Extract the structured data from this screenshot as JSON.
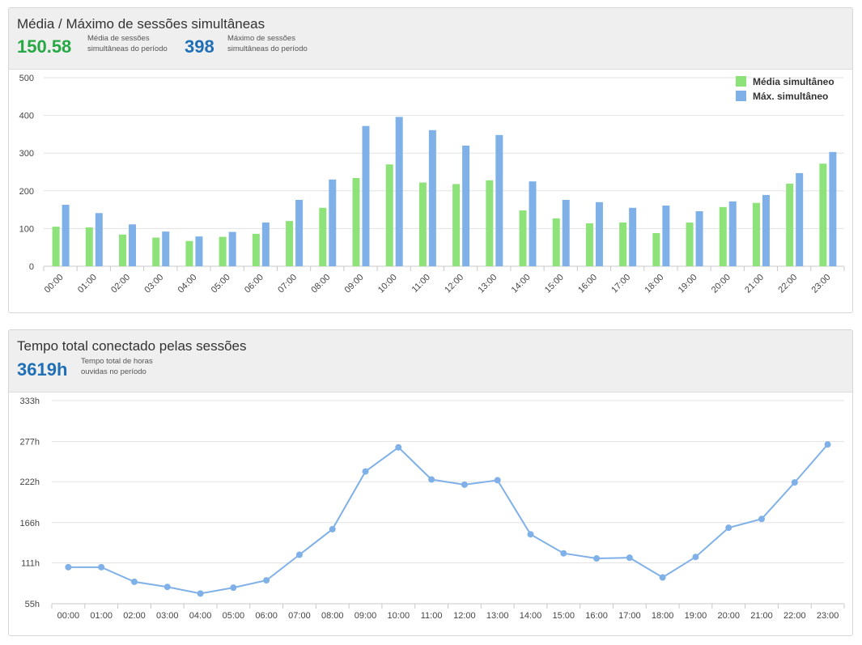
{
  "panel1": {
    "title": "Média / Máximo de sessões simultâneas",
    "stat_avg_value": "150.58",
    "stat_avg_label": "Média de sessões simultâneas do período",
    "stat_max_value": "398",
    "stat_max_label": "Máximo de sessões simultâneas do período"
  },
  "panel2": {
    "title": "Tempo total conectado pelas sessões",
    "stat_total_value": "3619h",
    "stat_total_label": "Tempo total de horas ouvidas no período"
  },
  "chart_data": [
    {
      "type": "bar",
      "categories": [
        "00:00",
        "01:00",
        "02:00",
        "03:00",
        "04:00",
        "05:00",
        "06:00",
        "07:00",
        "08:00",
        "09:00",
        "10:00",
        "11:00",
        "12:00",
        "13:00",
        "14:00",
        "15:00",
        "16:00",
        "17:00",
        "18:00",
        "19:00",
        "20:00",
        "21:00",
        "22:00",
        "23:00"
      ],
      "series": [
        {
          "name": "Média simultâneo",
          "color": "#8ee27a",
          "values": [
            105,
            103,
            84,
            76,
            67,
            78,
            86,
            120,
            155,
            234,
            270,
            222,
            218,
            228,
            148,
            127,
            114,
            116,
            88,
            116,
            157,
            168,
            219,
            272
          ]
        },
        {
          "name": "Máx. simultâneo",
          "color": "#7fb1e8",
          "values": [
            163,
            141,
            111,
            92,
            79,
            91,
            116,
            176,
            230,
            372,
            396,
            361,
            320,
            348,
            225,
            176,
            170,
            155,
            161,
            146,
            172,
            189,
            247,
            303
          ]
        }
      ],
      "yticks": [
        0,
        100,
        200,
        300,
        400,
        500
      ],
      "ylim": [
        0,
        500
      ],
      "grid": true,
      "legend": "top-right"
    },
    {
      "type": "line",
      "categories": [
        "00:00",
        "01:00",
        "02:00",
        "03:00",
        "04:00",
        "05:00",
        "06:00",
        "07:00",
        "08:00",
        "09:00",
        "10:00",
        "11:00",
        "12:00",
        "13:00",
        "14:00",
        "15:00",
        "16:00",
        "17:00",
        "18:00",
        "19:00",
        "20:00",
        "21:00",
        "22:00",
        "23:00"
      ],
      "series": [
        {
          "color": "#7fb1e8",
          "values": [
            105,
            105,
            85,
            78,
            69,
            77,
            87,
            122,
            157,
            236,
            269,
            225,
            218,
            224,
            150,
            124,
            117,
            118,
            91,
            119,
            159,
            171,
            221,
            273
          ]
        }
      ],
      "yticks": [
        "55h",
        "111h",
        "166h",
        "222h",
        "277h",
        "333h"
      ],
      "ytick_values": [
        55,
        111,
        166,
        222,
        277,
        333
      ],
      "ylim": [
        55,
        333
      ],
      "grid": true
    }
  ]
}
